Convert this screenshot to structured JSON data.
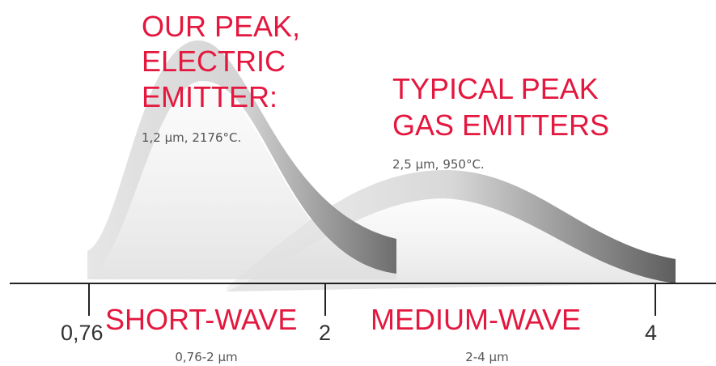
{
  "peaks": [
    {
      "title_lines": [
        "OUR PEAK,",
        "ELECTRIC",
        "EMITTER:"
      ],
      "detail": "1,2 µm, 2176°C."
    },
    {
      "title_lines": [
        "TYPICAL PEAK",
        "GAS EMITTERS"
      ],
      "detail": "2,5 µm, 950°C."
    }
  ],
  "axis": {
    "ticks": [
      "0,76",
      "2",
      "4"
    ]
  },
  "bands": [
    {
      "name": "SHORT-WAVE",
      "range": "0,76-2 µm"
    },
    {
      "name": "MEDIUM-WAVE",
      "range": "2-4 µm"
    }
  ]
}
